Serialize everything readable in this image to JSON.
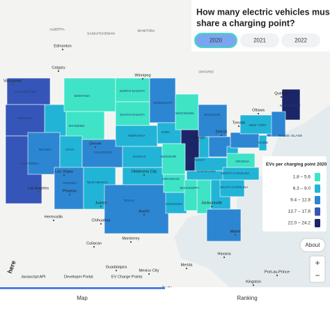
{
  "header": {
    "title_lines": [
      "How many electric vehicles must",
      "share a charging point?"
    ]
  },
  "year_buttons": {
    "labels": [
      "2020",
      "2021",
      "2022"
    ],
    "selected": 0
  },
  "legend": {
    "title": "EVs per charging point 2020",
    "items": [
      {
        "label": "1.8 – 5.6",
        "color": "#3fe3c6"
      },
      {
        "label": "6.3 – 9.0",
        "color": "#22b4d6"
      },
      {
        "label": "9.4 – 12.8",
        "color": "#2d86d2"
      },
      {
        "label": "13.7 – 17.8",
        "color": "#3556b8"
      },
      {
        "label": "22.0 – 24.2",
        "color": "#1b2568"
      }
    ]
  },
  "states": [
    {
      "name": "WASHINGTON",
      "class": 3
    },
    {
      "name": "OREGON",
      "class": 3
    },
    {
      "name": "CALIFORNIA",
      "class": 3
    },
    {
      "name": "NEVADA",
      "class": 2
    },
    {
      "name": "MONTANA",
      "class": 0
    },
    {
      "name": "WYOMING",
      "class": 0
    },
    {
      "name": "UTAH",
      "class": 1
    },
    {
      "name": "COLORADO",
      "class": 2
    },
    {
      "name": "ARIZONA",
      "class": 2
    },
    {
      "name": "NEW MEXICO",
      "class": 1
    },
    {
      "name": "NORTH DAKOTA",
      "class": 0
    },
    {
      "name": "SOUTH DAKOTA",
      "class": 0
    },
    {
      "name": "NEBRASKA",
      "class": 1
    },
    {
      "name": "KANSAS",
      "class": 1
    },
    {
      "name": "TEXAS",
      "class": 2
    },
    {
      "name": "MINNESOTA",
      "class": 2
    },
    {
      "name": "IOWA",
      "class": 1
    },
    {
      "name": "MISSOURI",
      "class": 0
    },
    {
      "name": "ARKANSAS",
      "class": 0
    },
    {
      "name": "LOUISIANA",
      "class": 1
    },
    {
      "name": "WISCONSIN",
      "class": 0
    },
    {
      "name": "MICHIGAN",
      "class": 2
    },
    {
      "name": "KENTUCKY",
      "class": 1
    },
    {
      "name": "TENNESSEE",
      "class": 1
    },
    {
      "name": "MISSISSIPPI",
      "class": 0
    },
    {
      "name": "SOUTH CAROLINA",
      "class": 1
    },
    {
      "name": "NORTH CAROLINA",
      "class": 1
    },
    {
      "name": "VIRGINIA",
      "class": 0
    },
    {
      "name": "NEW YORK",
      "class": 1
    },
    {
      "name": "MAINE",
      "class": 1
    },
    {
      "name": "NEW JERSEY",
      "class": 4
    },
    {
      "name": "RHODE ISLAND",
      "class": 2
    }
  ],
  "places": [
    "ALBERTA",
    "SASKATCHEWAN",
    "MANITOBA",
    "ONTARIO",
    "Edmonton",
    "Calgary",
    "Winnipeg",
    "Vancouver",
    "Toronto",
    "Ottawa",
    "Quebec",
    "Detroit",
    "Chicago",
    "Denver",
    "Las Vegas",
    "Los Angeles",
    "Phoenix",
    "Oklahoma City",
    "Austin",
    "Juárez",
    "Chihuahua",
    "Hermosillo",
    "Monterrey",
    "Culiacan",
    "Guadalajara",
    "Mexico City",
    "Merida",
    "Havana",
    "Jacksonville",
    "Miami",
    "Kingston",
    "Port-au-Prince",
    "Tuxtla"
  ],
  "controls": {
    "about": "About",
    "zoom_in": "+",
    "zoom_out": "−"
  },
  "footer": {
    "logo": "here",
    "links": [
      "Javascript API",
      "Developer Portal",
      "EV Charge Points"
    ]
  },
  "tabs": {
    "labels": [
      "Map",
      "Ranking"
    ],
    "active": 0
  }
}
